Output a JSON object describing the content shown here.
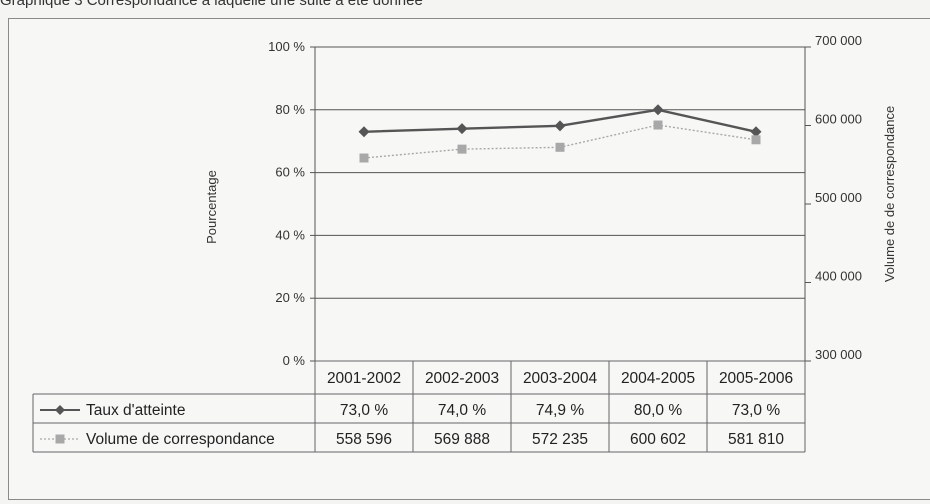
{
  "caption": "Graphique 3   Correspondance à laquelle une suite a été donnée",
  "chart_data": {
    "type": "line",
    "categories": [
      "2001-2002",
      "2002-2003",
      "2003-2004",
      "2004-2005",
      "2005-2006"
    ],
    "series": [
      {
        "name": "Taux d'atteinte",
        "axis": "left",
        "values": [
          73.0,
          74.0,
          74.9,
          80.0,
          73.0
        ],
        "labels": [
          "73,0 %",
          "74,0 %",
          "74,9 %",
          "80,0 %",
          "73,0 %"
        ],
        "color": "#555555",
        "marker": "diamond"
      },
      {
        "name": "Volume de correspondance",
        "axis": "right",
        "values": [
          558596,
          569888,
          572235,
          600602,
          581810
        ],
        "labels": [
          "558 596",
          "569 888",
          "572 235",
          "600 602",
          "581 810"
        ],
        "color": "#a8a8a8",
        "marker": "square"
      }
    ],
    "ylabel_left": "Pourcentage",
    "ylabel_right": "Volume de  de correspondance",
    "ylim_left": [
      0,
      100
    ],
    "ylim_right": [
      300000,
      700000
    ],
    "yticks_left": [
      "0 %",
      "20 %",
      "40 %",
      "60 %",
      "80 %",
      "100 %"
    ],
    "yticks_right": [
      "300 000",
      "400 000",
      "500 000",
      "600 000",
      "700 000"
    ],
    "grid": true,
    "legend": "data table"
  }
}
